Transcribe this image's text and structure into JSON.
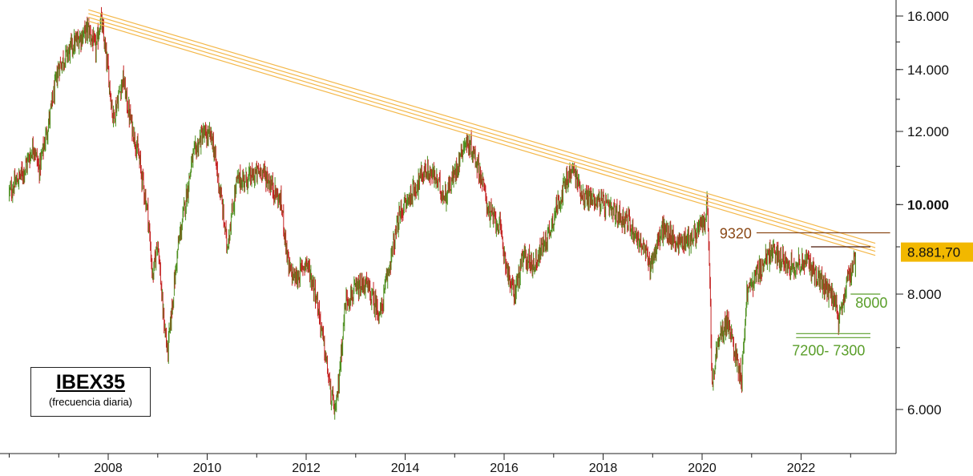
{
  "chart_data": {
    "type": "candlestick",
    "title": "IBEX35",
    "subtitle": "(frecuencia diaria)",
    "scale": "log",
    "ylim": [
      5300,
      17000
    ],
    "y_ticks": [
      "16.000",
      "14.000",
      "12.000",
      "10.000",
      "8.000",
      "6.000"
    ],
    "y_tick_values": [
      16000,
      14000,
      12000,
      10000,
      8000,
      6000
    ],
    "bold_y_ticks": [
      "10.000"
    ],
    "x_ticks": [
      "2008",
      "2010",
      "2012",
      "2014",
      "2016",
      "2018",
      "2020",
      "2022"
    ],
    "x_tick_values": [
      2008,
      2010,
      2012,
      2014,
      2016,
      2018,
      2020,
      2022
    ],
    "xlim": [
      2006.0,
      2024.0
    ],
    "last_price": {
      "label": "8.881,70",
      "value": 8881.7,
      "color": "#f2b800"
    },
    "price_path": [
      [
        2006.0,
        10300
      ],
      [
        2006.3,
        10900
      ],
      [
        2006.5,
        11600
      ],
      [
        2006.6,
        10900
      ],
      [
        2006.8,
        12300
      ],
      [
        2007.0,
        14100
      ],
      [
        2007.3,
        14900
      ],
      [
        2007.6,
        15500
      ],
      [
        2007.75,
        14700
      ],
      [
        2007.85,
        15945
      ],
      [
        2008.0,
        13900
      ],
      [
        2008.1,
        12400
      ],
      [
        2008.3,
        13700
      ],
      [
        2008.4,
        12700
      ],
      [
        2008.6,
        11400
      ],
      [
        2008.8,
        9800
      ],
      [
        2008.9,
        8300
      ],
      [
        2009.0,
        9200
      ],
      [
        2009.1,
        7700
      ],
      [
        2009.2,
        6900
      ],
      [
        2009.4,
        8900
      ],
      [
        2009.7,
        11200
      ],
      [
        2009.9,
        11900
      ],
      [
        2010.1,
        11800
      ],
      [
        2010.3,
        10000
      ],
      [
        2010.4,
        9000
      ],
      [
        2010.6,
        10600
      ],
      [
        2010.9,
        10700
      ],
      [
        2011.1,
        10900
      ],
      [
        2011.3,
        10500
      ],
      [
        2011.5,
        10000
      ],
      [
        2011.65,
        8500
      ],
      [
        2011.8,
        8300
      ],
      [
        2012.0,
        8700
      ],
      [
        2012.2,
        8000
      ],
      [
        2012.4,
        6800
      ],
      [
        2012.5,
        6200
      ],
      [
        2012.6,
        5950
      ],
      [
        2012.8,
        7900
      ],
      [
        2013.2,
        8200
      ],
      [
        2013.5,
        7600
      ],
      [
        2013.7,
        8700
      ],
      [
        2013.9,
        9800
      ],
      [
        2014.1,
        10200
      ],
      [
        2014.4,
        10900
      ],
      [
        2014.6,
        10700
      ],
      [
        2014.8,
        10200
      ],
      [
        2015.0,
        10800
      ],
      [
        2015.2,
        11700
      ],
      [
        2015.35,
        11500
      ],
      [
        2015.5,
        10900
      ],
      [
        2015.7,
        9800
      ],
      [
        2015.9,
        9500
      ],
      [
        2016.1,
        8300
      ],
      [
        2016.2,
        8000
      ],
      [
        2016.4,
        8800
      ],
      [
        2016.6,
        8600
      ],
      [
        2016.9,
        9300
      ],
      [
        2017.1,
        10100
      ],
      [
        2017.3,
        10700
      ],
      [
        2017.4,
        10900
      ],
      [
        2017.6,
        10200
      ],
      [
        2017.9,
        10100
      ],
      [
        2018.0,
        10000
      ],
      [
        2018.2,
        9800
      ],
      [
        2018.5,
        9600
      ],
      [
        2018.8,
        9000
      ],
      [
        2018.95,
        8600
      ],
      [
        2019.2,
        9400
      ],
      [
        2019.5,
        9100
      ],
      [
        2019.8,
        9200
      ],
      [
        2020.05,
        9600
      ],
      [
        2020.1,
        10000
      ],
      [
        2020.15,
        8600
      ],
      [
        2020.2,
        6300
      ],
      [
        2020.3,
        7000
      ],
      [
        2020.5,
        7500
      ],
      [
        2020.7,
        6800
      ],
      [
        2020.8,
        6500
      ],
      [
        2020.9,
        8000
      ],
      [
        2021.1,
        8400
      ],
      [
        2021.4,
        8900
      ],
      [
        2021.6,
        8700
      ],
      [
        2021.9,
        8600
      ],
      [
        2022.1,
        8700
      ],
      [
        2022.3,
        8400
      ],
      [
        2022.5,
        8100
      ],
      [
        2022.7,
        7900
      ],
      [
        2022.75,
        7350
      ],
      [
        2022.9,
        8100
      ],
      [
        2023.0,
        8450
      ],
      [
        2023.1,
        8881.7
      ]
    ],
    "trendlines": [
      {
        "name": "trend-1",
        "x": [
          2007.6,
          2023.5
        ],
        "y": [
          16250,
          9080
        ],
        "color": "#f4b84a"
      },
      {
        "name": "trend-2",
        "x": [
          2007.6,
          2023.5
        ],
        "y": [
          16100,
          8980
        ],
        "color": "#f4b84a"
      },
      {
        "name": "trend-3",
        "x": [
          2007.6,
          2023.5
        ],
        "y": [
          15950,
          8900
        ],
        "color": "#f4b84a"
      },
      {
        "name": "trend-4",
        "x": [
          2007.6,
          2023.5
        ],
        "y": [
          15800,
          8810
        ],
        "color": "#f4b84a"
      }
    ],
    "levels": [
      {
        "name": "resistance-9320",
        "label": "9320",
        "value": 9320,
        "x": [
          2021.1,
          2023.8
        ],
        "color": "#8b4a18"
      },
      {
        "name": "resistance-9000",
        "label": "",
        "value": 9000,
        "x": [
          2022.2,
          2023.4
        ],
        "color": "#4a1808"
      },
      {
        "name": "support-8000",
        "label": "8000",
        "value": 8000,
        "x": [
          2023.0,
          2023.6
        ],
        "color": "#5a9e2a"
      },
      {
        "name": "support-7200",
        "label": "7200- 7300",
        "value": 7250,
        "x": [
          2021.9,
          2023.4
        ],
        "color": "#5a9e2a"
      }
    ],
    "candle_colors": {
      "up": "#4d8f1f",
      "down": "#c42222"
    },
    "grid": false,
    "legend": "bottom-left"
  }
}
